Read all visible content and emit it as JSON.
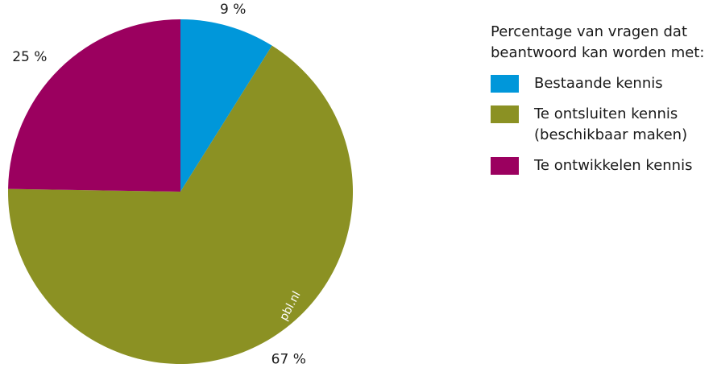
{
  "chart_data": {
    "type": "pie",
    "title": "",
    "legend_title": "Percentage van vragen dat beantwoord kan worden met:",
    "legend_placement": "right",
    "start_angle_deg": 0,
    "direction": "clockwise",
    "slices": [
      {
        "name": "Bestaande kennis",
        "value": 9,
        "label": "9 %",
        "color": "#0097DA"
      },
      {
        "name": "Te ontsluiten kennis (beschikbaar maken)",
        "name_line1": "Te ontsluiten kennis",
        "name_line2": "(beschikbaar maken)",
        "value": 67,
        "label": "67 %",
        "color": "#8B9123"
      },
      {
        "name": "Te ontwikkelen kennis",
        "value": 25,
        "label": "25 %",
        "color": "#9B005F"
      }
    ],
    "watermark": "pbl.nl"
  }
}
